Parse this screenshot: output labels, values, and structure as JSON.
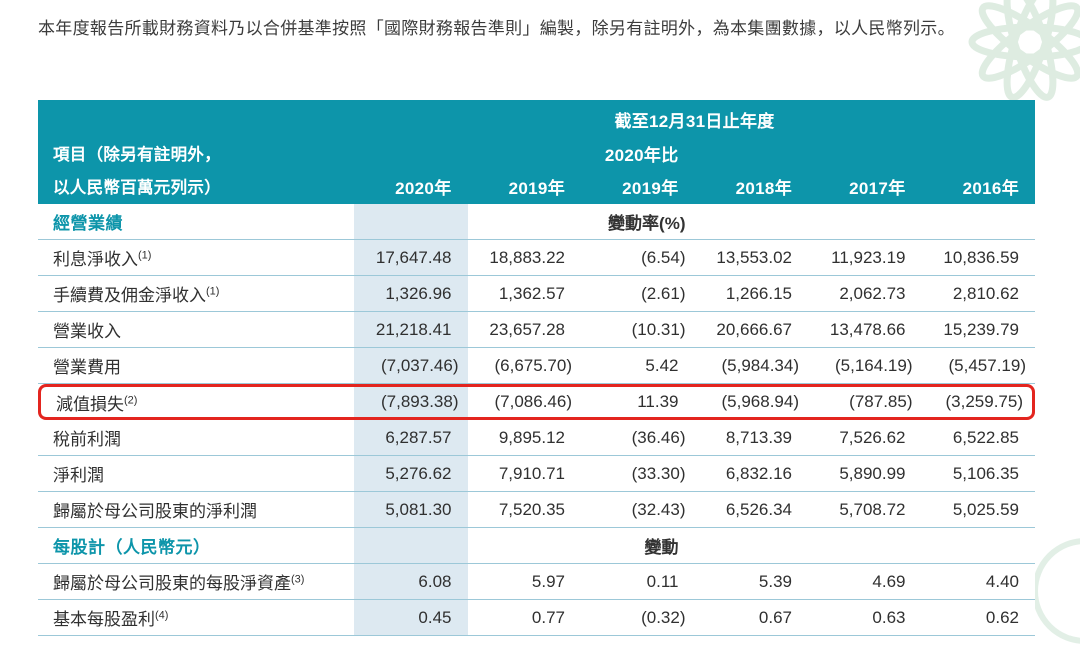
{
  "intro": "本年度報告所載財務資料乃以合併基準按照「國際財務報告準則」編製，除另有註明外，為本集團數據，以人民幣列示。",
  "table": {
    "period_header": "截至12月31日止年度",
    "item_header_line1": "項目（除另有註明外，",
    "item_header_line2": "以人民幣百萬元列示）",
    "change_label_top": "2020年比",
    "year_columns": [
      "2020年",
      "2019年",
      "2019年",
      "2018年",
      "2017年",
      "2016年"
    ],
    "sections": [
      {
        "title": "經營業績",
        "note": "變動率(%)",
        "rows": [
          {
            "label": "利息淨收入",
            "footnote": "(1)",
            "values": [
              "17,647.48",
              "18,883.22",
              "(6.54)",
              "13,553.02",
              "11,923.19",
              "10,836.59"
            ]
          },
          {
            "label": "手續費及佣金淨收入",
            "footnote": "(1)",
            "values": [
              "1,326.96",
              "1,362.57",
              "(2.61)",
              "1,266.15",
              "2,062.73",
              "2,810.62"
            ]
          },
          {
            "label": "營業收入",
            "values": [
              "21,218.41",
              "23,657.28",
              "(10.31)",
              "20,666.67",
              "13,478.66",
              "15,239.79"
            ]
          },
          {
            "label": "營業費用",
            "values": [
              "(7,037.46)",
              "(6,675.70)",
              "5.42",
              "(5,984.34)",
              "(5,164.19)",
              "(5,457.19)"
            ]
          },
          {
            "label": "減值損失",
            "footnote": "(2)",
            "highlight": true,
            "values": [
              "(7,893.38)",
              "(7,086.46)",
              "11.39",
              "(5,968.94)",
              "(787.85)",
              "(3,259.75)"
            ]
          },
          {
            "label": "稅前利潤",
            "values": [
              "6,287.57",
              "9,895.12",
              "(36.46)",
              "8,713.39",
              "7,526.62",
              "6,522.85"
            ]
          },
          {
            "label": "淨利潤",
            "values": [
              "5,276.62",
              "7,910.71",
              "(33.30)",
              "6,832.16",
              "5,890.99",
              "5,106.35"
            ]
          },
          {
            "label": "歸屬於母公司股東的淨利潤",
            "values": [
              "5,081.30",
              "7,520.35",
              "(32.43)",
              "6,526.34",
              "5,708.72",
              "5,025.59"
            ]
          }
        ]
      },
      {
        "title": "每股計（人民幣元）",
        "note": "變動",
        "rows": [
          {
            "label": "歸屬於母公司股東的每股淨資產",
            "footnote": "(3)",
            "values": [
              "6.08",
              "5.97",
              "0.11",
              "5.39",
              "4.69",
              "4.40"
            ]
          },
          {
            "label": "基本每股盈利",
            "footnote": "(4)",
            "values": [
              "0.45",
              "0.77",
              "(0.32)",
              "0.67",
              "0.63",
              "0.62"
            ]
          }
        ]
      }
    ]
  },
  "colors": {
    "header_teal": "#0d95aa",
    "tint_column": "#dde9f1",
    "row_line": "#9cc8d8",
    "highlight_red": "#e3251f",
    "flourish_green": "#d3e6d8"
  }
}
